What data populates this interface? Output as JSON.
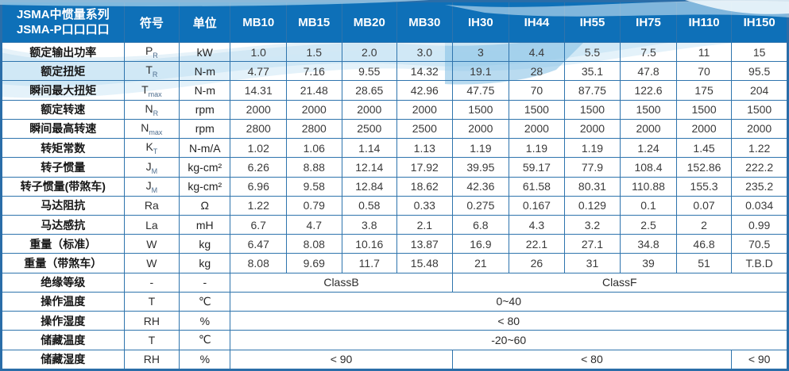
{
  "colors": {
    "header_bg": "#0e70b8",
    "grid_border": "#2e74ad",
    "outer_border": "#2a6da8",
    "wave_accent": "#a5d2ec",
    "wave_light": "#d2e9f7"
  },
  "header": {
    "title_line1": "JSMA中惯量系列",
    "title_line2": "JSMA-P口口口口",
    "symbol_col": "符号",
    "unit_col": "单位",
    "models": [
      "MB10",
      "MB15",
      "MB20",
      "MB30",
      "IH30",
      "IH44",
      "IH55",
      "IH75",
      "IH110",
      "IH150"
    ]
  },
  "rows": [
    {
      "label": "额定输出功率",
      "symbol": "P",
      "sub": "R",
      "unit": "kW",
      "values": [
        "1.0",
        "1.5",
        "2.0",
        "3.0",
        "3",
        "4.4",
        "5.5",
        "7.5",
        "11",
        "15"
      ]
    },
    {
      "label": "额定扭矩",
      "symbol": "T",
      "sub": "R",
      "unit": "N-m",
      "values": [
        "4.77",
        "7.16",
        "9.55",
        "14.32",
        "19.1",
        "28",
        "35.1",
        "47.8",
        "70",
        "95.5"
      ]
    },
    {
      "label": "瞬间最大扭矩",
      "symbol": "T",
      "sub": "max",
      "unit": "N-m",
      "values": [
        "14.31",
        "21.48",
        "28.65",
        "42.96",
        "47.75",
        "70",
        "87.75",
        "122.6",
        "175",
        "204"
      ]
    },
    {
      "label": "额定转速",
      "symbol": "N",
      "sub": "R",
      "unit": "rpm",
      "values": [
        "2000",
        "2000",
        "2000",
        "2000",
        "1500",
        "1500",
        "1500",
        "1500",
        "1500",
        "1500"
      ]
    },
    {
      "label": "瞬间最高转速",
      "symbol": "N",
      "sub": "max",
      "unit": "rpm",
      "values": [
        "2800",
        "2800",
        "2500",
        "2500",
        "2000",
        "2000",
        "2000",
        "2000",
        "2000",
        "2000"
      ]
    },
    {
      "label": "转矩常数",
      "symbol": "K",
      "sub": "T",
      "unit": "N-m/A",
      "values": [
        "1.02",
        "1.06",
        "1.14",
        "1.13",
        "1.19",
        "1.19",
        "1.19",
        "1.24",
        "1.45",
        "1.22"
      ]
    },
    {
      "label": "转子惯量",
      "symbol": "J",
      "sub": "M",
      "unit": "kg-cm²",
      "values": [
        "6.26",
        "8.88",
        "12.14",
        "17.92",
        "39.95",
        "59.17",
        "77.9",
        "108.4",
        "152.86",
        "222.2"
      ]
    },
    {
      "label": "转子惯量(带煞车)",
      "symbol": "J",
      "sub": "M",
      "unit": "kg-cm²",
      "values": [
        "6.96",
        "9.58",
        "12.84",
        "18.62",
        "42.36",
        "61.58",
        "80.31",
        "110.88",
        "155.3",
        "235.2"
      ]
    },
    {
      "label": "马达阻抗",
      "symbol": "Ra",
      "sub": "",
      "unit": "Ω",
      "values": [
        "1.22",
        "0.79",
        "0.58",
        "0.33",
        "0.275",
        "0.167",
        "0.129",
        "0.1",
        "0.07",
        "0.034"
      ]
    },
    {
      "label": "马达感抗",
      "symbol": "La",
      "sub": "",
      "unit": "mH",
      "values": [
        "6.7",
        "4.7",
        "3.8",
        "2.1",
        "6.8",
        "4.3",
        "3.2",
        "2.5",
        "2",
        "0.99"
      ]
    },
    {
      "label": "重量（标准）",
      "symbol": "W",
      "sub": "",
      "unit": "kg",
      "values": [
        "6.47",
        "8.08",
        "10.16",
        "13.87",
        "16.9",
        "22.1",
        "27.1",
        "34.8",
        "46.8",
        "70.5"
      ]
    },
    {
      "label": "重量（带煞车）",
      "symbol": "W",
      "sub": "",
      "unit": "kg",
      "values": [
        "8.08",
        "9.69",
        "11.7",
        "15.48",
        "21",
        "26",
        "31",
        "39",
        "51",
        "T.B.D"
      ]
    },
    {
      "label": "绝缘等级",
      "symbol": "-",
      "sub": "",
      "unit": "-",
      "spans": [
        {
          "text": "ClassB",
          "cols": 4
        },
        {
          "text": "ClassF",
          "cols": 6
        }
      ]
    },
    {
      "label": "操作温度",
      "symbol": "T",
      "sub": "",
      "unit": "℃",
      "spans": [
        {
          "text": "0~40",
          "cols": 10
        }
      ]
    },
    {
      "label": "操作湿度",
      "symbol": "RH",
      "sub": "",
      "unit": "%",
      "spans": [
        {
          "text": "< 80",
          "cols": 10
        }
      ]
    },
    {
      "label": "储藏温度",
      "symbol": "T",
      "sub": "",
      "unit": "℃",
      "spans": [
        {
          "text": "-20~60",
          "cols": 10
        }
      ]
    },
    {
      "label": "储藏湿度",
      "symbol": "RH",
      "sub": "",
      "unit": "%",
      "spans": [
        {
          "text": "< 90",
          "cols": 4
        },
        {
          "text": "< 80",
          "cols": 5
        },
        {
          "text": "< 90",
          "cols": 1
        }
      ]
    }
  ]
}
